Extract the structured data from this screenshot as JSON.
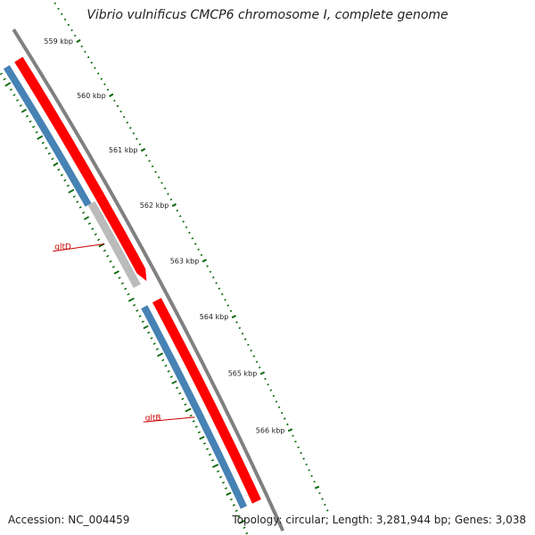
{
  "title": "Vibrio vulnificus CMCP6 chromosome I, complete genome",
  "footer": {
    "accession": "Accession: NC_004459",
    "summary": "Topology: circular; Length: 3,281,944 bp; Genes: 3,038"
  },
  "colors": {
    "background": "#ffffff",
    "backbone": "#808080",
    "reverse_strand_genes": "#ff0000",
    "forward_strand_genes": "#4682b4",
    "other_feature": "#bbbbbb",
    "ticks": "#006400",
    "gene_label": "#cc0000"
  },
  "ticks": {
    "labels": [
      "559 kbp",
      "560 kbp",
      "561 kbp",
      "562 kbp",
      "563 kbp",
      "564 kbp",
      "565 kbp",
      "566 kbp"
    ],
    "major_kbp": [
      559,
      560,
      561,
      562,
      563,
      564,
      565,
      566
    ],
    "minor_step_kbp": 0.1
  },
  "features": {
    "reverse_strand": [
      {
        "start_kbp": 558.75,
        "end_kbp": 561.3,
        "arrow": false
      },
      {
        "start_kbp": 561.3,
        "end_kbp": 562.85,
        "arrow": true
      },
      {
        "start_kbp": 563.2,
        "end_kbp": 566.8,
        "arrow": false
      }
    ],
    "forward_strand": [
      {
        "start_kbp": 558.75,
        "end_kbp": 561.33
      },
      {
        "start_kbp": 563.2,
        "end_kbp": 566.8
      }
    ],
    "other": [
      {
        "start_kbp": 561.33,
        "end_kbp": 562.85
      }
    ]
  },
  "gene_labels": [
    {
      "name": "gltD",
      "position_kbp": 562.0
    },
    {
      "name": "gltB",
      "position_kbp": 565.15
    }
  ]
}
